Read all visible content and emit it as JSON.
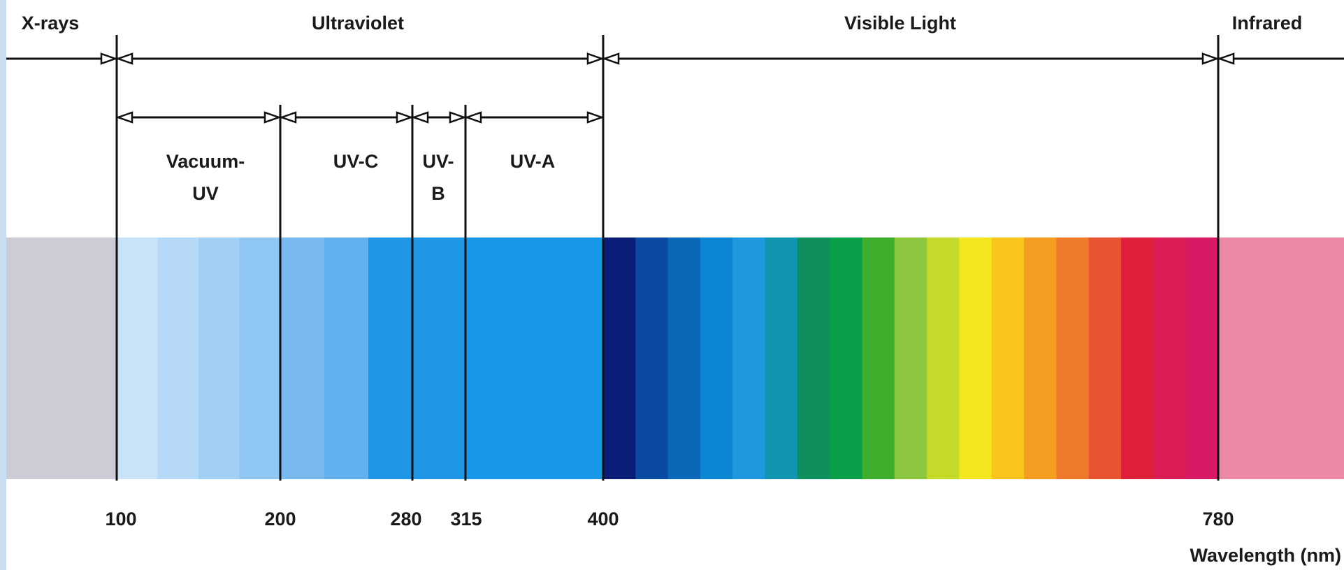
{
  "regions": [
    {
      "key": "xrays",
      "label": "X-rays"
    },
    {
      "key": "uv",
      "label": "Ultraviolet"
    },
    {
      "key": "visible",
      "label": "Visible Light"
    },
    {
      "key": "ir",
      "label": "Infrared"
    }
  ],
  "uv_bands": [
    {
      "key": "vacuum",
      "line1": "Vacuum-",
      "line2": "UV"
    },
    {
      "key": "uvc",
      "line1": "UV-C",
      "line2": ""
    },
    {
      "key": "uvb",
      "line1": "UV-",
      "line2": "B"
    },
    {
      "key": "uva",
      "line1": "UV-A",
      "line2": ""
    }
  ],
  "ticks": [
    "100",
    "200",
    "280",
    "315",
    "400",
    "780"
  ],
  "axis_label": "Wavelength (nm)",
  "colors": {
    "page_border": "#c9dcf0",
    "xray": "#ccccd6",
    "vuv": [
      "#c8e2f7",
      "#b5d9f6",
      "#a2cff4",
      "#8fc6f2"
    ],
    "uvc": [
      "#78baf0",
      "#62b0ee",
      "#1f97e6"
    ],
    "uvb": "#1f97e6",
    "uva": "#1a98e8",
    "visible": [
      "#0a1e78",
      "#0a4aa3",
      "#0b68b8",
      "#0c86d2",
      "#1f98e0",
      "#1094b0",
      "#0e8f5c",
      "#089f48",
      "#3eae2c",
      "#8dc63f",
      "#c5d92b",
      "#f3e61c",
      "#f9c51a",
      "#f59d20",
      "#ee7b2c",
      "#e85332",
      "#e01f3a",
      "#dc1c55",
      "#d81a66"
    ],
    "infrared": "#ec8aa5",
    "line": "#111111"
  }
}
